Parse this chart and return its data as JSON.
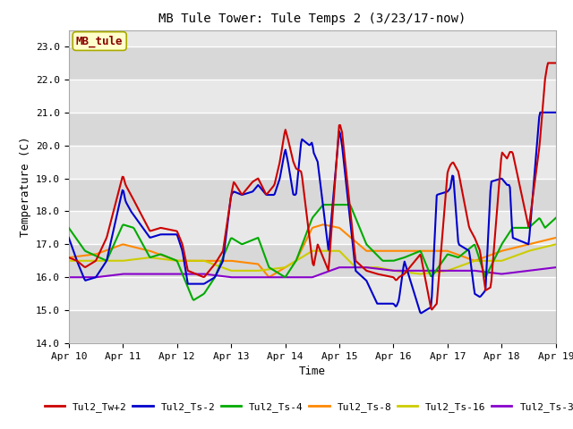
{
  "title": "MB Tule Tower: Tule Temps 2 (3/23/17-now)",
  "xlabel": "Time",
  "ylabel": "Temperature (C)",
  "ylim": [
    14.0,
    23.5
  ],
  "yticks": [
    14.0,
    15.0,
    16.0,
    17.0,
    18.0,
    19.0,
    20.0,
    21.0,
    22.0,
    23.0
  ],
  "xlim": [
    0,
    9
  ],
  "xtick_positions": [
    0,
    1,
    2,
    3,
    4,
    5,
    6,
    7,
    8,
    9
  ],
  "xtick_labels": [
    "Apr 10",
    "Apr 11",
    "Apr 12",
    "Apr 13",
    "Apr 14",
    "Apr 15",
    "Apr 16",
    "Apr 17",
    "Apr 18",
    "Apr 19"
  ],
  "fig_bg_color": "#ffffff",
  "plot_bg_color": "#e8e8e8",
  "grid_color": "#ffffff",
  "series": {
    "Tul2_Tw+2": {
      "color": "#cc0000",
      "lw": 1.5
    },
    "Tul2_Ts-2": {
      "color": "#0000cc",
      "lw": 1.5
    },
    "Tul2_Ts-4": {
      "color": "#00aa00",
      "lw": 1.5
    },
    "Tul2_Ts-8": {
      "color": "#ff8800",
      "lw": 1.5
    },
    "Tul2_Ts-16": {
      "color": "#cccc00",
      "lw": 1.5
    },
    "Tul2_Ts-32": {
      "color": "#8800cc",
      "lw": 1.5
    }
  },
  "annotation_label": "MB_tule",
  "annotation_color": "#880000",
  "annotation_bg": "#ffffcc",
  "annotation_border": "#aaaa00",
  "tw2_xk": [
    0,
    0.15,
    0.3,
    0.5,
    0.7,
    1.0,
    1.05,
    1.15,
    1.5,
    1.7,
    2.0,
    2.1,
    2.2,
    2.5,
    2.7,
    2.85,
    3.0,
    3.05,
    3.2,
    3.4,
    3.5,
    3.65,
    3.8,
    3.9,
    4.0,
    4.05,
    4.15,
    4.2,
    4.3,
    4.5,
    4.52,
    4.6,
    4.8,
    5.0,
    5.05,
    5.3,
    5.5,
    5.7,
    6.0,
    6.05,
    6.1,
    6.2,
    6.5,
    6.7,
    6.8,
    7.0,
    7.05,
    7.1,
    7.2,
    7.4,
    7.5,
    7.6,
    7.7,
    7.8,
    8.0,
    8.05,
    8.1,
    8.15,
    8.2,
    8.5,
    8.7,
    8.8,
    8.85,
    9.0
  ],
  "tw2_yk": [
    16.6,
    16.5,
    16.3,
    16.5,
    17.2,
    19.1,
    18.8,
    18.5,
    17.4,
    17.5,
    17.4,
    17.0,
    16.2,
    16.0,
    16.4,
    16.8,
    18.5,
    18.9,
    18.5,
    18.9,
    19.0,
    18.5,
    18.8,
    19.5,
    20.5,
    20.2,
    19.5,
    19.3,
    19.2,
    16.5,
    16.3,
    17.0,
    16.2,
    20.7,
    20.4,
    16.5,
    16.2,
    16.1,
    16.0,
    15.9,
    16.0,
    16.1,
    16.7,
    15.0,
    15.2,
    19.2,
    19.4,
    19.5,
    19.2,
    17.5,
    17.2,
    16.8,
    15.6,
    15.7,
    19.8,
    19.7,
    19.6,
    19.8,
    19.8,
    17.5,
    20.0,
    22.0,
    22.5,
    22.5
  ],
  "ts2_xk": [
    0,
    0.15,
    0.3,
    0.5,
    0.7,
    1.0,
    1.05,
    1.15,
    1.5,
    1.7,
    2.0,
    2.1,
    2.2,
    2.5,
    2.7,
    2.85,
    3.0,
    3.05,
    3.2,
    3.4,
    3.5,
    3.65,
    3.8,
    3.9,
    4.0,
    4.05,
    4.15,
    4.2,
    4.3,
    4.45,
    4.5,
    4.52,
    4.6,
    4.8,
    5.0,
    5.05,
    5.3,
    5.5,
    5.7,
    6.0,
    6.05,
    6.1,
    6.2,
    6.5,
    6.7,
    6.8,
    7.0,
    7.05,
    7.1,
    7.2,
    7.4,
    7.5,
    7.6,
    7.7,
    7.8,
    8.0,
    8.05,
    8.1,
    8.15,
    8.2,
    8.5,
    8.7,
    8.8,
    8.85,
    9.0
  ],
  "ts2_yk": [
    17.2,
    16.5,
    15.9,
    16.0,
    16.5,
    18.7,
    18.3,
    18.0,
    17.2,
    17.3,
    17.3,
    16.8,
    15.8,
    15.8,
    16.0,
    16.5,
    18.5,
    18.6,
    18.5,
    18.6,
    18.8,
    18.5,
    18.5,
    19.0,
    19.9,
    19.5,
    18.5,
    18.5,
    20.2,
    20.0,
    20.1,
    19.8,
    19.5,
    16.8,
    20.5,
    20.0,
    16.2,
    15.9,
    15.2,
    15.2,
    15.1,
    15.3,
    16.5,
    14.9,
    15.1,
    18.5,
    18.6,
    18.7,
    19.2,
    17.0,
    16.8,
    15.5,
    15.4,
    15.6,
    18.9,
    19.0,
    18.9,
    18.8,
    18.8,
    17.2,
    17.0,
    21.0,
    21.0,
    21.0,
    21.0
  ],
  "ts4_xk": [
    0,
    0.3,
    0.7,
    1.0,
    1.2,
    1.5,
    1.7,
    2.0,
    2.3,
    2.5,
    2.7,
    3.0,
    3.2,
    3.5,
    3.7,
    4.0,
    4.2,
    4.5,
    4.7,
    5.0,
    5.2,
    5.5,
    5.8,
    6.0,
    6.2,
    6.5,
    6.7,
    7.0,
    7.2,
    7.5,
    7.7,
    8.0,
    8.2,
    8.5,
    8.7,
    8.8,
    9.0
  ],
  "ts4_yk": [
    17.5,
    16.8,
    16.5,
    17.6,
    17.5,
    16.6,
    16.7,
    16.5,
    15.3,
    15.5,
    16.0,
    17.2,
    17.0,
    17.2,
    16.3,
    16.0,
    16.5,
    17.8,
    18.2,
    18.2,
    18.2,
    17.0,
    16.5,
    16.5,
    16.6,
    16.8,
    16.0,
    16.7,
    16.6,
    17.0,
    16.0,
    17.0,
    17.5,
    17.5,
    17.8,
    17.5,
    17.8
  ],
  "ts8_xk": [
    0,
    0.5,
    1.0,
    1.5,
    2.0,
    2.5,
    3.0,
    3.5,
    3.7,
    4.0,
    4.2,
    4.5,
    4.7,
    5.0,
    5.5,
    6.0,
    6.5,
    7.0,
    7.5,
    8.0,
    8.5,
    9.0
  ],
  "ts8_yk": [
    16.6,
    16.7,
    17.0,
    16.8,
    16.5,
    16.5,
    16.5,
    16.4,
    16.0,
    16.3,
    16.5,
    17.5,
    17.6,
    17.5,
    16.8,
    16.8,
    16.8,
    16.8,
    16.5,
    16.8,
    17.0,
    17.2
  ],
  "ts16_xk": [
    0,
    0.5,
    1.0,
    1.5,
    2.0,
    2.5,
    3.0,
    3.5,
    4.0,
    4.5,
    5.0,
    5.3,
    5.7,
    6.0,
    6.5,
    7.0,
    7.5,
    8.0,
    8.5,
    9.0
  ],
  "ts16_yk": [
    16.5,
    16.5,
    16.5,
    16.6,
    16.5,
    16.5,
    16.2,
    16.2,
    16.3,
    16.8,
    16.8,
    16.3,
    16.3,
    16.2,
    16.1,
    16.2,
    16.5,
    16.5,
    16.8,
    17.0
  ],
  "ts32_xk": [
    0,
    0.5,
    1.0,
    1.5,
    2.0,
    2.5,
    3.0,
    3.5,
    4.0,
    4.5,
    5.0,
    5.5,
    6.0,
    6.5,
    7.0,
    7.5,
    8.0,
    8.5,
    9.0
  ],
  "ts32_yk": [
    16.0,
    16.0,
    16.1,
    16.1,
    16.1,
    16.1,
    16.0,
    16.0,
    16.0,
    16.0,
    16.3,
    16.3,
    16.2,
    16.2,
    16.2,
    16.2,
    16.1,
    16.2,
    16.3
  ]
}
